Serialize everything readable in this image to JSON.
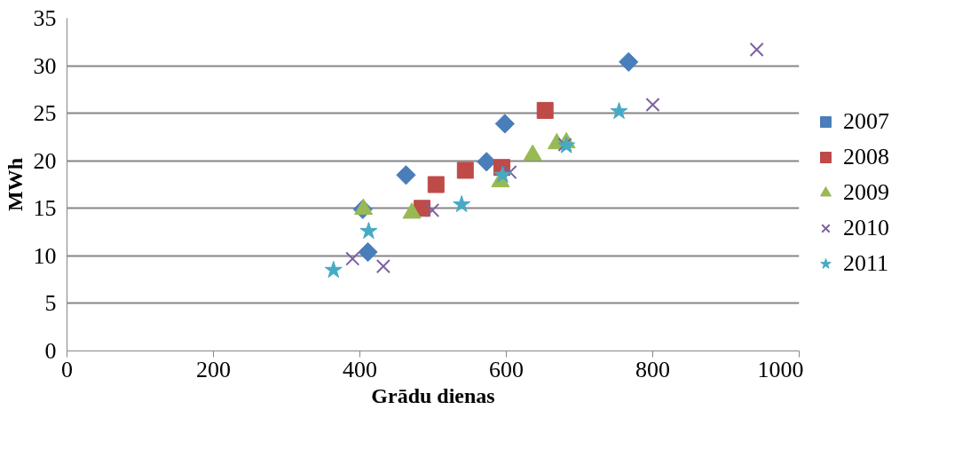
{
  "chart_data": {
    "type": "scatter",
    "xlabel": "Grādu dienas",
    "ylabel": "MWh",
    "xlim": [
      0,
      1000
    ],
    "xticks": [
      0,
      200,
      400,
      600,
      800,
      1000
    ],
    "ylim": [
      0,
      35
    ],
    "yticks": [
      0,
      5,
      10,
      15,
      20,
      25,
      30,
      35
    ],
    "grid": "y",
    "legend": "right",
    "series": [
      {
        "name": "2007",
        "color": "#4a7ebb",
        "marker": "diamond",
        "x": [
          411,
          404,
          463,
          573,
          598,
          767
        ],
        "values": [
          10.4,
          14.9,
          18.5,
          19.9,
          23.9,
          30.4
        ]
      },
      {
        "name": "2008",
        "color": "#be4b48",
        "marker": "square",
        "x": [
          485,
          504,
          544,
          594,
          653
        ],
        "values": [
          15.0,
          17.5,
          19.0,
          19.3,
          25.3
        ]
      },
      {
        "name": "2009",
        "color": "#98b954",
        "marker": "triangle",
        "x": [
          405,
          471,
          592,
          636,
          669,
          682
        ],
        "values": [
          14.9,
          14.5,
          17.8,
          20.6,
          21.8,
          21.9
        ]
      },
      {
        "name": "2010",
        "color": "#7d60a0",
        "marker": "cross",
        "x": [
          390,
          432,
          499,
          605,
          680,
          800,
          942
        ],
        "values": [
          9.7,
          8.9,
          14.8,
          18.8,
          21.7,
          25.9,
          31.7
        ]
      },
      {
        "name": "2011",
        "color": "#46aac5",
        "marker": "star",
        "x": [
          364,
          412,
          539,
          595,
          682,
          754
        ],
        "values": [
          8.5,
          12.6,
          15.4,
          18.5,
          21.6,
          25.2
        ]
      }
    ]
  }
}
